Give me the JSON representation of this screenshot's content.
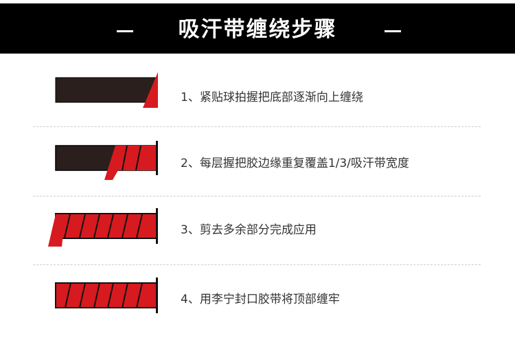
{
  "header": {
    "title": "吸汗带缠绕步骤",
    "dash_left": "—",
    "dash_right": "—"
  },
  "colors": {
    "banner": "#000000",
    "grip": "#2a1f1c",
    "tape": "#d71a1f",
    "text": "#333333"
  },
  "steps": [
    {
      "text": "1、紧贴球拍握把底部逐渐向上缠绕",
      "icon": "grip-step-1-icon"
    },
    {
      "text": "2、每层握把胶边缘重复覆盖1/3/吸汗带宽度",
      "icon": "grip-step-2-icon"
    },
    {
      "text": "3、剪去多余部分完成应用",
      "icon": "grip-step-3-icon"
    },
    {
      "text": "4、用李宁封口胶带将顶部缠牢",
      "icon": "grip-step-4-icon"
    }
  ]
}
